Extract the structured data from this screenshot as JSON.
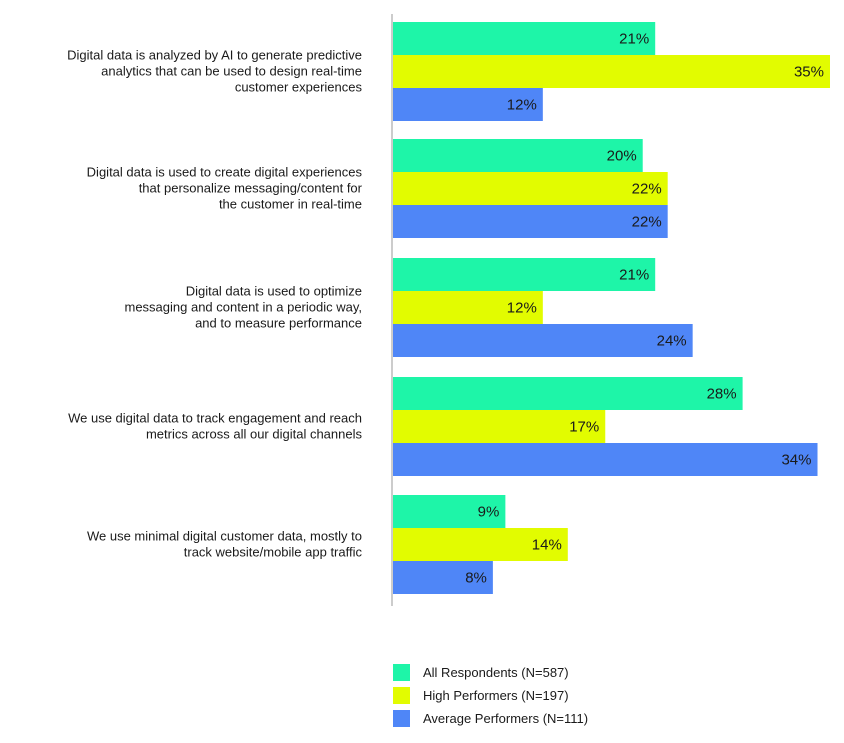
{
  "chart_data": {
    "type": "bar",
    "orientation": "horizontal",
    "categories": [
      [
        "Digital data is analyzed by AI to generate predictive",
        "analytics that can be used to design real-time",
        "customer experiences"
      ],
      [
        "Digital data is used to create digital experiences",
        "that personalize messaging/content for",
        "the customer in real-time"
      ],
      [
        "Digital data is used to optimize",
        "messaging and content in a periodic way,",
        "and to measure performance"
      ],
      [
        "We use digital data to track engagement and reach",
        "metrics across all our digital channels"
      ],
      [
        "We use minimal digital customer data, mostly to",
        "track website/mobile app traffic"
      ]
    ],
    "series": [
      {
        "name": "All Respondents (N=587)",
        "color": "#1ef5a8",
        "values": [
          21,
          20,
          21,
          28,
          9
        ]
      },
      {
        "name": "High Performers (N=197)",
        "color": "#e2fc00",
        "values": [
          35,
          22,
          12,
          17,
          14
        ]
      },
      {
        "name": "Average Performers (N=111)",
        "color": "#4f86f7",
        "values": [
          12,
          22,
          24,
          34,
          8
        ]
      }
    ],
    "value_suffix": "%",
    "xlim": [
      0,
      35
    ],
    "grid": false,
    "legend_position": "bottom-center"
  }
}
